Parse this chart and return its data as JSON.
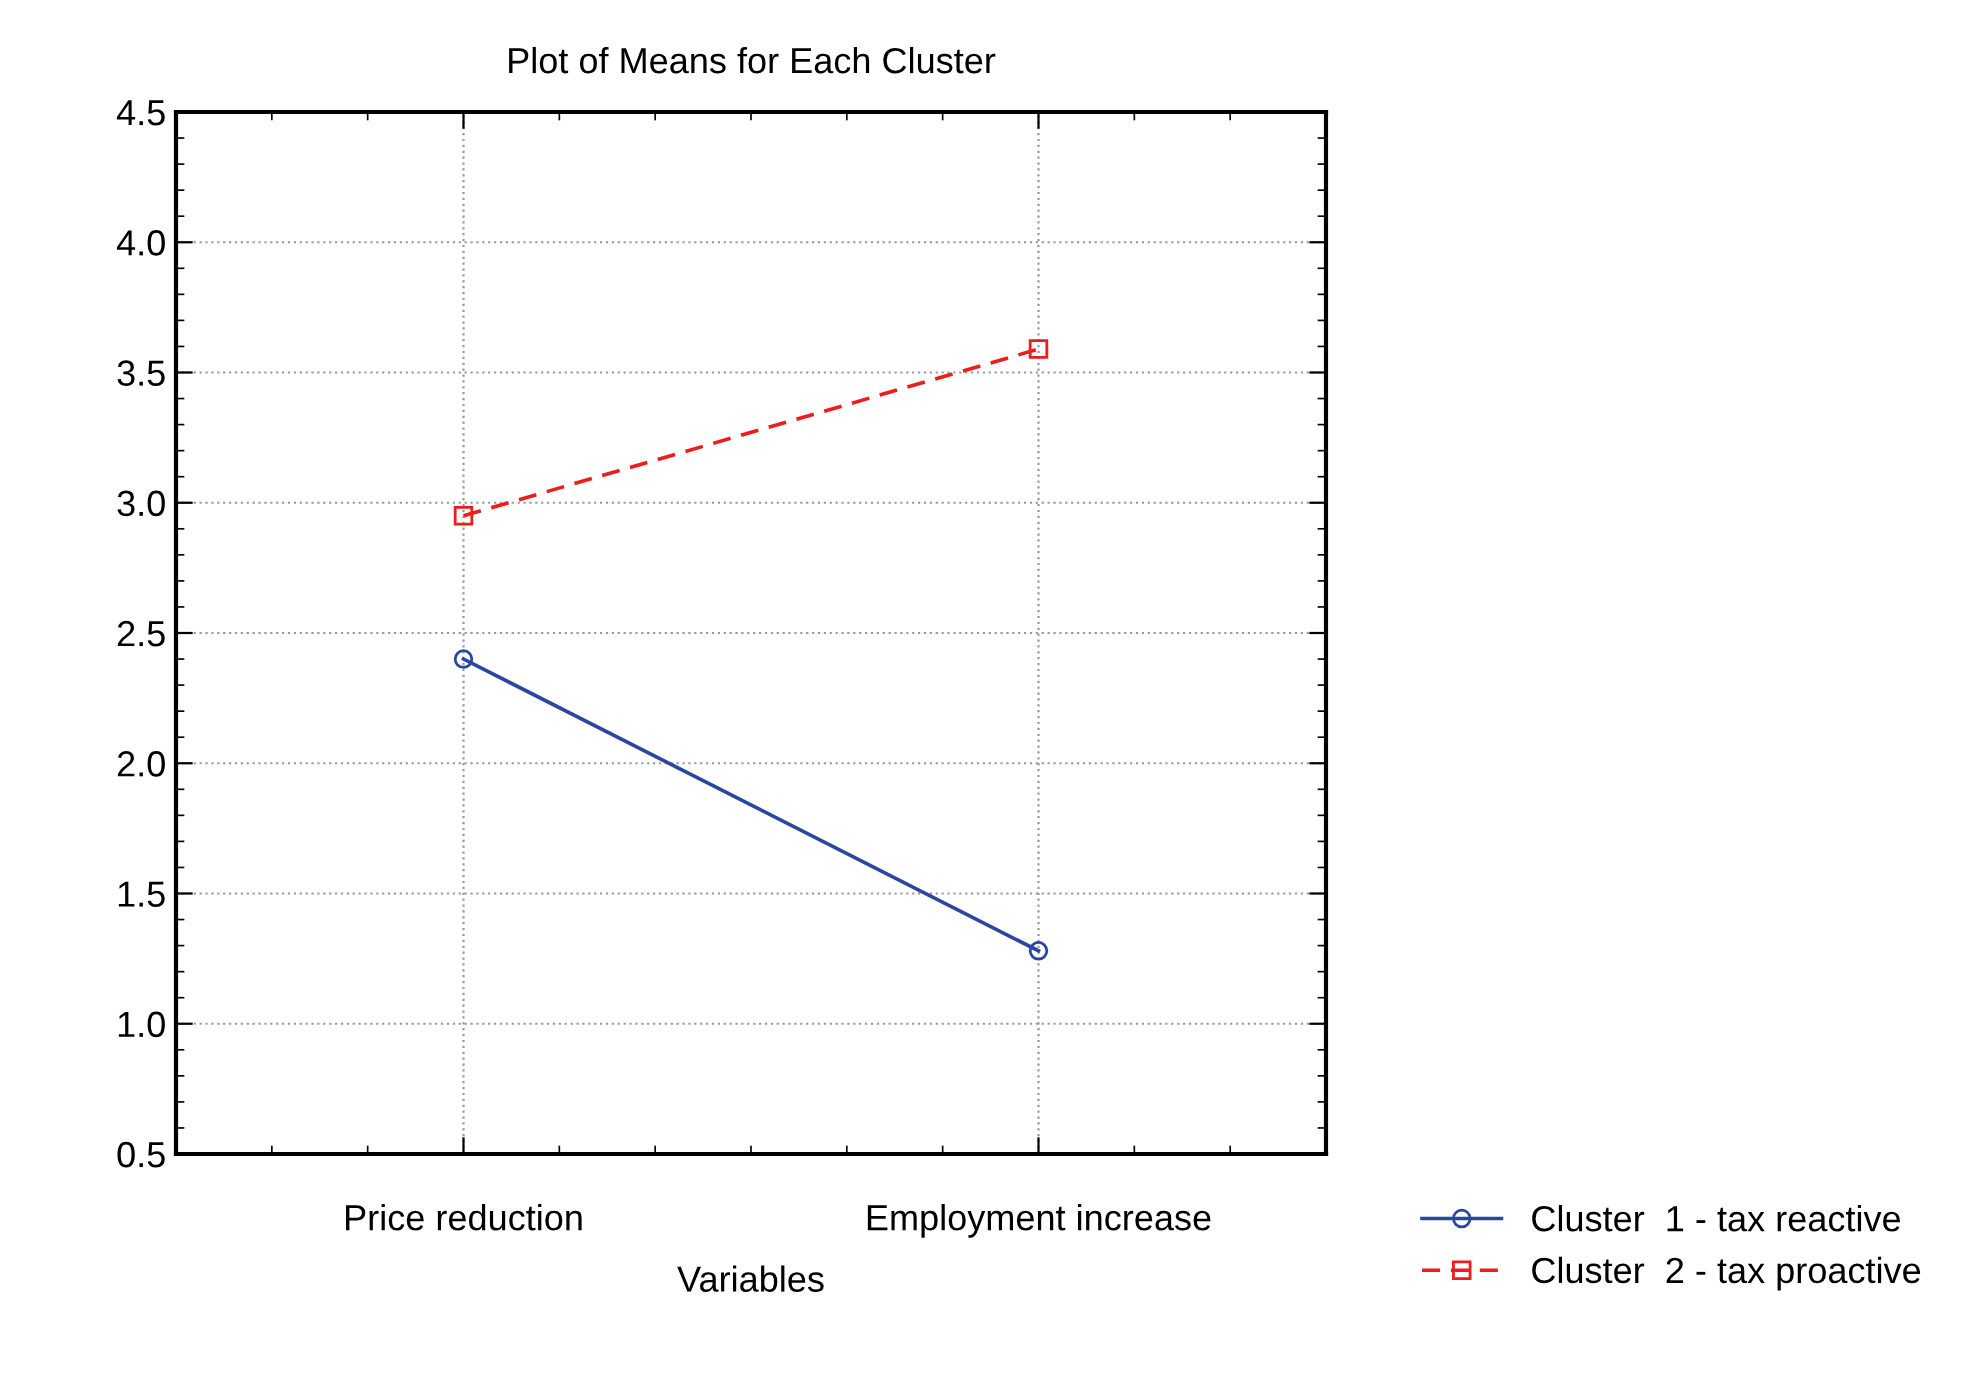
{
  "chart_data": {
    "type": "line",
    "title": "Plot of Means for Each Cluster",
    "xlabel": "Variables",
    "categories": [
      "Price reduction",
      "Employment increase"
    ],
    "series": [
      {
        "name": "Cluster  1 - tax reactive",
        "color": "#2a46a0",
        "values": [
          2.4,
          1.28
        ],
        "marker": "circle",
        "line_style": "solid"
      },
      {
        "name": "Cluster  2 - tax proactive",
        "color": "#ee1c1c",
        "values": [
          2.95,
          3.59
        ],
        "marker": "square",
        "line_style": "dashed"
      }
    ],
    "ylim": [
      0.5,
      4.5
    ],
    "yticks": [
      {
        "value": 0.5,
        "label": "0.5"
      },
      {
        "value": 1,
        "label": "1.0"
      },
      {
        "value": 1.5,
        "label": "1.5"
      },
      {
        "value": 2,
        "label": "2.0"
      },
      {
        "value": 2.5,
        "label": "2.5"
      },
      {
        "value": 3,
        "label": "3.0"
      },
      {
        "value": 3.5,
        "label": "3.5"
      },
      {
        "value": 4,
        "label": "4.0"
      },
      {
        "value": 4.5,
        "label": "4.5"
      }
    ],
    "grid": true,
    "legend": "bottom right"
  }
}
